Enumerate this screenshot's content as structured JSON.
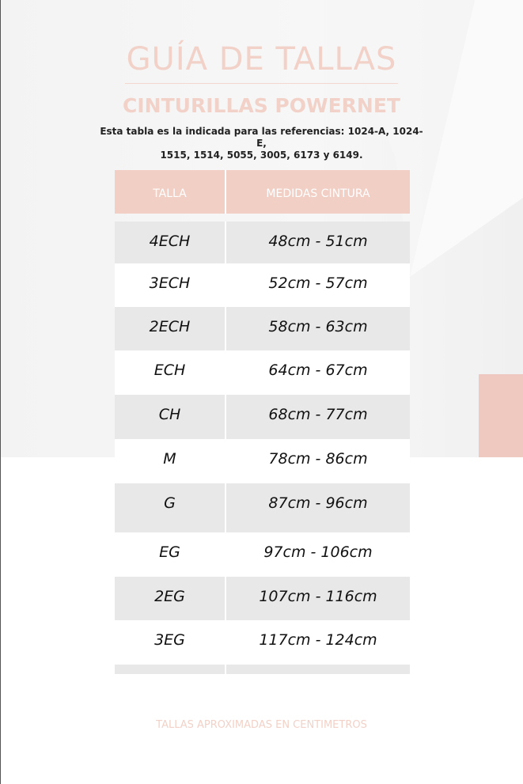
{
  "title": "GUÍA DE TALLAS",
  "subtitle": "CINTURILLAS POWERNET",
  "description": [
    "Esta tabla es la indicada para las referencias: 1024-A, 1024-E,",
    "1515, 1514, 5055, 3005, 6173 y 6149."
  ],
  "table": {
    "headers": [
      "TALLA",
      "MEDIDAS CINTURA"
    ],
    "rows": [
      {
        "size": "4ECH",
        "waist": "48cm - 51cm"
      },
      {
        "size": "3ECH",
        "waist": "52cm - 57cm"
      },
      {
        "size": "2ECH",
        "waist": "58cm - 63cm"
      },
      {
        "size": "ECH",
        "waist": "64cm - 67cm"
      },
      {
        "size": "CH",
        "waist": "68cm - 77cm"
      },
      {
        "size": "M",
        "waist": "78cm - 86cm"
      },
      {
        "size": "G",
        "waist": "87cm - 96cm"
      },
      {
        "size": "EG",
        "waist": "97cm - 106cm"
      },
      {
        "size": "2EG",
        "waist": "107cm - 116cm"
      },
      {
        "size": "3EG",
        "waist": "117cm - 124cm"
      }
    ]
  },
  "footer": "TALLAS APROXIMADAS EN CENTIMETROS",
  "colors": {
    "accent": "#f1cfc5",
    "row_alt": "#e8e8e8"
  }
}
